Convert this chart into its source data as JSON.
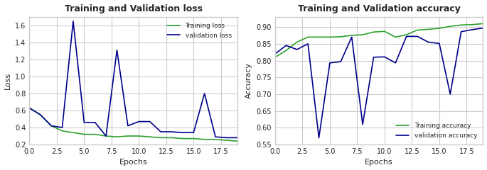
{
  "epochs": [
    0,
    1,
    2,
    3,
    4,
    5,
    6,
    7,
    8,
    9,
    10,
    11,
    12,
    13,
    14,
    15,
    16,
    17,
    18,
    19
  ],
  "train_loss": [
    0.63,
    0.55,
    0.42,
    0.36,
    0.34,
    0.32,
    0.32,
    0.3,
    0.29,
    0.3,
    0.3,
    0.29,
    0.28,
    0.28,
    0.27,
    0.27,
    0.26,
    0.26,
    0.25,
    0.24
  ],
  "val_loss": [
    0.63,
    0.55,
    0.42,
    0.4,
    1.65,
    0.46,
    0.46,
    0.3,
    1.31,
    0.42,
    0.47,
    0.47,
    0.35,
    0.35,
    0.34,
    0.34,
    0.8,
    0.29,
    0.28,
    0.28
  ],
  "train_acc": [
    0.81,
    0.83,
    0.855,
    0.87,
    0.87,
    0.87,
    0.871,
    0.875,
    0.877,
    0.885,
    0.887,
    0.87,
    0.877,
    0.891,
    0.893,
    0.896,
    0.902,
    0.906,
    0.907,
    0.91
  ],
  "val_acc": [
    0.82,
    0.845,
    0.833,
    0.85,
    0.57,
    0.793,
    0.797,
    0.87,
    0.61,
    0.81,
    0.811,
    0.793,
    0.872,
    0.872,
    0.855,
    0.851,
    0.7,
    0.886,
    0.892,
    0.897
  ],
  "train_loss_color": "#2ca02c",
  "val_loss_color": "#00008B",
  "train_acc_color": "#2ca02c",
  "val_acc_color": "#00008B",
  "loss_title": "Training and Validation loss",
  "acc_title": "Training and Validation accuracy",
  "xlabel": "Epochs",
  "loss_ylabel": "Loss",
  "acc_ylabel": "Accuracy",
  "loss_legend": [
    "Training loss",
    "validation loss"
  ],
  "acc_legend": [
    "Training accuracy",
    "validation accuracy"
  ],
  "loss_ylim": [
    0.2,
    1.7
  ],
  "acc_ylim": [
    0.55,
    0.93
  ],
  "xlim": [
    0,
    19
  ]
}
